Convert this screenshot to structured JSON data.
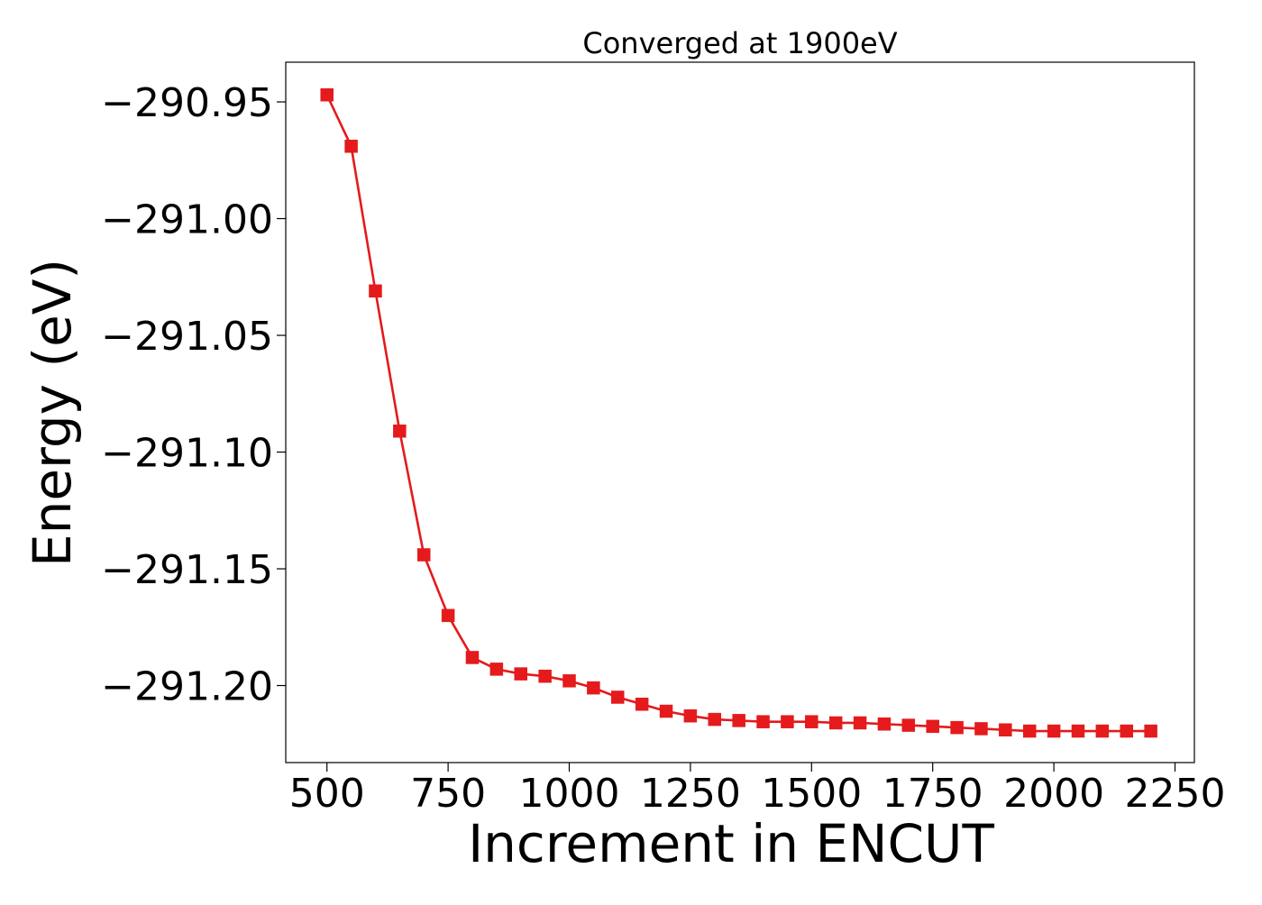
{
  "chart_data": {
    "type": "line",
    "title": "Converged at 1900eV",
    "xlabel": "Increment in ENCUT",
    "ylabel": "Energy (eV)",
    "xlim": [
      415,
      2290
    ],
    "ylim": [
      -291.233,
      -290.933
    ],
    "xticks": [
      500,
      750,
      1000,
      1250,
      1500,
      1750,
      2000,
      2250
    ],
    "xtick_labels": [
      "500",
      "750",
      "1000",
      "1250",
      "1500",
      "1750",
      "2000",
      "2250"
    ],
    "yticks": [
      -290.95,
      -291.0,
      -291.05,
      -291.1,
      -291.15,
      -291.2
    ],
    "ytick_labels": [
      "−290.95",
      "−291.00",
      "−291.05",
      "−291.10",
      "−291.15",
      "−291.20"
    ],
    "grid": false,
    "legend": "none",
    "series": [
      {
        "color": "#e41a1c",
        "marker": "square",
        "x": [
          500,
          550,
          600,
          650,
          700,
          750,
          800,
          850,
          900,
          950,
          1000,
          1050,
          1100,
          1150,
          1200,
          1250,
          1300,
          1350,
          1400,
          1450,
          1500,
          1550,
          1600,
          1650,
          1700,
          1750,
          1800,
          1850,
          1900,
          1950,
          2000,
          2050,
          2100,
          2150,
          2200
        ],
        "y": [
          -290.947,
          -290.969,
          -291.031,
          -291.091,
          -291.144,
          -291.17,
          -291.188,
          -291.193,
          -291.195,
          -291.196,
          -291.198,
          -291.201,
          -291.205,
          -291.208,
          -291.211,
          -291.213,
          -291.2145,
          -291.215,
          -291.2155,
          -291.2155,
          -291.2155,
          -291.216,
          -291.216,
          -291.2165,
          -291.217,
          -291.2175,
          -291.218,
          -291.2185,
          -291.219,
          -291.2195,
          -291.2195,
          -291.2195,
          -291.2195,
          -291.2195,
          -291.2195
        ]
      }
    ]
  }
}
